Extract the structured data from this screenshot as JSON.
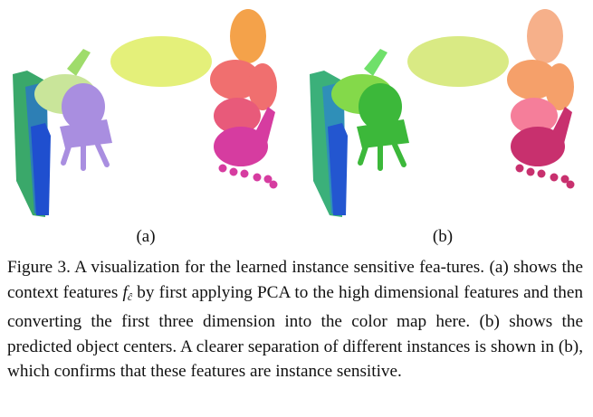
{
  "figure": {
    "panels": [
      {
        "id": "a",
        "label": "(a)",
        "colors": {
          "cabinet": [
            "#3aa86a",
            "#2d7fb5",
            "#1f4fcf"
          ],
          "chair": "#a98ee0",
          "chair_back": "#c9e59a",
          "chair_arm": "#9fdc6b",
          "table": "#e4f07a",
          "stack": [
            "#f4a24a",
            "#f06f6f",
            "#e85a7a",
            "#d63ca0"
          ]
        }
      },
      {
        "id": "b",
        "label": "(b)",
        "colors": {
          "cabinet": [
            "#3bb07a",
            "#2f8fb8",
            "#2356d0"
          ],
          "chair": "#3cb83a",
          "chair_back": "#84d94a",
          "chair_arm": "#6fe06a",
          "table": "#d9ea84",
          "stack": [
            "#f6b08a",
            "#f5a06a",
            "#f57e9a",
            "#c8306e"
          ]
        }
      }
    ]
  },
  "caption": {
    "prefix": "Figure 3. A visualization for the learned instance sensitive fea-tures. (a) shows the context features ",
    "symbol": "f",
    "subscript": "ĉ",
    "suffix": " by first applying PCA to the high dimensional features and then converting the first three dimension into the color map here. (b) shows the predicted object centers. A clearer separation of different instances is shown in (b), which confirms that these features are instance sensitive."
  }
}
